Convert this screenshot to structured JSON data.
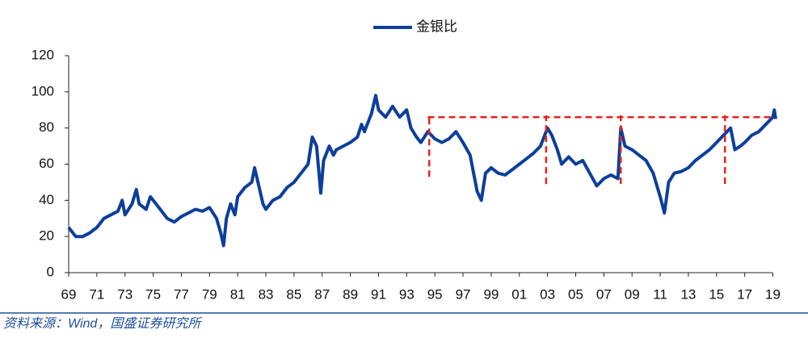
{
  "chart_data": {
    "type": "line",
    "x": [
      1969,
      1969.5,
      1970,
      1970.5,
      1971,
      1971.5,
      1972,
      1972.5,
      1972.8,
      1973,
      1973.5,
      1973.8,
      1974,
      1974.5,
      1974.8,
      1975,
      1975.5,
      1976,
      1976.5,
      1977,
      1977.5,
      1978,
      1978.5,
      1979,
      1979.5,
      1979.8,
      1980,
      1980.2,
      1980.5,
      1980.8,
      1981,
      1981.5,
      1982,
      1982.2,
      1982.5,
      1982.8,
      1983,
      1983.5,
      1984,
      1984.5,
      1985,
      1985.5,
      1986,
      1986.3,
      1986.6,
      1986.9,
      1987.1,
      1987.5,
      1987.8,
      1988,
      1988.5,
      1989,
      1989.5,
      1989.8,
      1990,
      1990.5,
      1990.8,
      1991,
      1991.5,
      1992,
      1992.5,
      1993,
      1993.3,
      1993.7,
      1994,
      1994.5,
      1995,
      1995.5,
      1996,
      1996.5,
      1997,
      1997.5,
      1998,
      1998.3,
      1998.6,
      1999,
      1999.5,
      2000,
      2000.5,
      2001,
      2001.5,
      2002,
      2002.5,
      2003,
      2003.3,
      2003.7,
      2004,
      2004.5,
      2005,
      2005.5,
      2006,
      2006.5,
      2007,
      2007.5,
      2008,
      2008.2,
      2008.5,
      2009,
      2009.5,
      2010,
      2010.5,
      2011,
      2011.3,
      2011.6,
      2012,
      2012.5,
      2013,
      2013.5,
      2014,
      2014.5,
      2015,
      2015.5,
      2016,
      2016.3,
      2016.7,
      2017,
      2017.5,
      2018,
      2018.5,
      2019,
      2019.1,
      2019.2
    ],
    "series": [
      {
        "name": "金银比",
        "color": "#0d3f9a",
        "values": [
          25,
          20,
          20,
          22,
          25,
          30,
          32,
          34,
          40,
          32,
          38,
          46,
          38,
          35,
          42,
          40,
          35,
          30,
          28,
          31,
          33,
          35,
          34,
          36,
          30,
          22,
          15,
          30,
          38,
          32,
          42,
          47,
          50,
          58,
          48,
          38,
          35,
          40,
          42,
          47,
          50,
          55,
          60,
          75,
          70,
          44,
          62,
          70,
          65,
          68,
          70,
          72,
          75,
          82,
          78,
          88,
          98,
          90,
          86,
          92,
          86,
          90,
          80,
          75,
          72,
          78,
          74,
          72,
          74,
          78,
          72,
          65,
          45,
          40,
          55,
          58,
          55,
          54,
          57,
          60,
          63,
          66,
          70,
          80,
          76,
          68,
          60,
          64,
          60,
          62,
          55,
          48,
          52,
          54,
          52,
          80,
          70,
          68,
          65,
          62,
          55,
          42,
          33,
          50,
          55,
          56,
          58,
          62,
          65,
          68,
          72,
          76,
          80,
          68,
          70,
          72,
          76,
          78,
          82,
          86,
          90,
          85
        ]
      }
    ],
    "xlim": [
      1969,
      2019.2
    ],
    "xticks": [
      {
        "value": 1969,
        "label": "69"
      },
      {
        "value": 1971,
        "label": "71"
      },
      {
        "value": 1973,
        "label": "73"
      },
      {
        "value": 1975,
        "label": "75"
      },
      {
        "value": 1977,
        "label": "77"
      },
      {
        "value": 1979,
        "label": "79"
      },
      {
        "value": 1981,
        "label": "81"
      },
      {
        "value": 1983,
        "label": "83"
      },
      {
        "value": 1985,
        "label": "85"
      },
      {
        "value": 1987,
        "label": "87"
      },
      {
        "value": 1989,
        "label": "89"
      },
      {
        "value": 1991,
        "label": "91"
      },
      {
        "value": 1993,
        "label": "93"
      },
      {
        "value": 1995,
        "label": "95"
      },
      {
        "value": 1997,
        "label": "97"
      },
      {
        "value": 1999,
        "label": "99"
      },
      {
        "value": 2001,
        "label": "01"
      },
      {
        "value": 2003,
        "label": "03"
      },
      {
        "value": 2005,
        "label": "05"
      },
      {
        "value": 2007,
        "label": "07"
      },
      {
        "value": 2009,
        "label": "09"
      },
      {
        "value": 2011,
        "label": "11"
      },
      {
        "value": 2013,
        "label": "13"
      },
      {
        "value": 2015,
        "label": "15"
      },
      {
        "value": 2017,
        "label": "17"
      },
      {
        "value": 2019,
        "label": "19"
      }
    ],
    "ylim": [
      0,
      120
    ],
    "yticks": [
      0,
      20,
      40,
      60,
      80,
      100,
      120
    ],
    "grid": false,
    "legend": "top",
    "reference_lines": {
      "color": "#e8231f",
      "horizontal": {
        "y": 86,
        "x": [
          1994.5,
          2019
        ]
      },
      "vertical": [
        {
          "x": 1994.6,
          "y": [
            53,
            86
          ]
        },
        {
          "x": 2002.9,
          "y": [
            49,
            87
          ]
        },
        {
          "x": 2008.2,
          "y": [
            49,
            87
          ]
        },
        {
          "x": 2015.6,
          "y": [
            49,
            87
          ]
        }
      ]
    },
    "source": "资料来源：Wind，国盛证券研究所"
  }
}
